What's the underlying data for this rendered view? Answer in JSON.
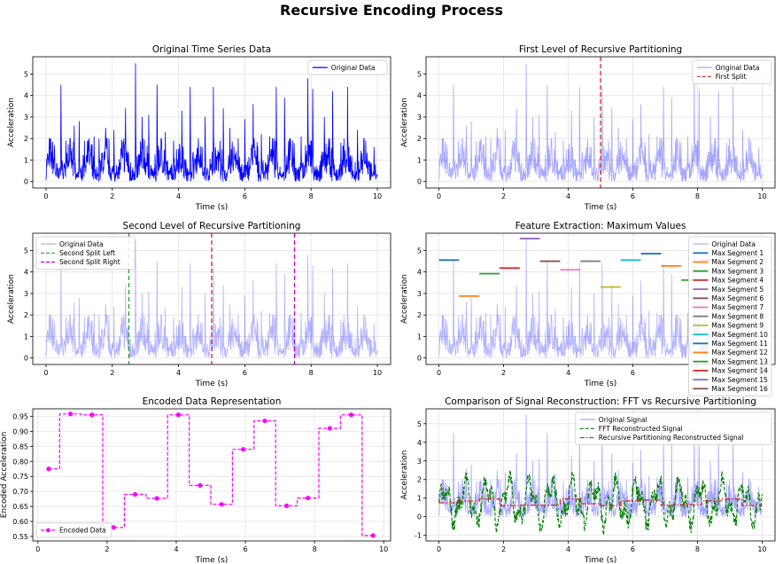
{
  "suptitle": "Recursive Encoding Process",
  "chart_data": [
    {
      "type": "line",
      "title": "Original Time Series Data",
      "xlabel": "Time (s)",
      "ylabel": "Acceleration",
      "xlim": [
        -0.4,
        10.4
      ],
      "ylim": [
        -0.3,
        5.8
      ],
      "xticks": [
        0,
        2,
        4,
        6,
        8,
        10
      ],
      "yticks": [
        0,
        1,
        2,
        3,
        4,
        5
      ],
      "grid": true,
      "legend": "top-right",
      "series": [
        {
          "name": "Original Data",
          "color": "#0000ff",
          "opacity": 1.0,
          "style": "signal",
          "peaks": [
            [
              0.25,
              1.7
            ],
            [
              0.45,
              2.2
            ],
            [
              0.6,
              1.9
            ],
            [
              0.85,
              2.6
            ],
            [
              1.25,
              1.9
            ],
            [
              1.45,
              2.1
            ],
            [
              1.6,
              2.0
            ],
            [
              1.8,
              2.5
            ],
            [
              2.05,
              2.4
            ],
            [
              2.4,
              3.4
            ],
            [
              2.7,
              5.5
            ],
            [
              2.9,
              3.0
            ],
            [
              3.1,
              3.1
            ],
            [
              3.35,
              2.4
            ],
            [
              3.6,
              2.3
            ],
            [
              3.85,
              1.9
            ],
            [
              4.1,
              3.3
            ],
            [
              4.35,
              4.4
            ],
            [
              4.6,
              2.0
            ],
            [
              4.8,
              3.0
            ],
            [
              5.05,
              4.4
            ],
            [
              5.25,
              1.9
            ],
            [
              5.55,
              2.5
            ],
            [
              5.8,
              2.0
            ],
            [
              6.0,
              2.9
            ],
            [
              6.25,
              3.6
            ],
            [
              6.5,
              2.2
            ],
            [
              6.75,
              2.1
            ],
            [
              6.95,
              4.4
            ],
            [
              7.2,
              2.6
            ],
            [
              7.45,
              1.9
            ],
            [
              7.7,
              2.1
            ],
            [
              7.9,
              4.8
            ],
            [
              8.05,
              4.3
            ],
            [
              8.4,
              3.0
            ],
            [
              8.65,
              2.0
            ],
            [
              8.9,
              1.8
            ],
            [
              9.1,
              2.9
            ],
            [
              9.4,
              2.4
            ],
            [
              9.65,
              1.9
            ],
            [
              9.9,
              1.6
            ],
            [
              0.45,
              4.5
            ],
            [
              1.0,
              2.8
            ],
            [
              3.35,
              4.5
            ],
            [
              5.35,
              3.4
            ],
            [
              7.2,
              3.9
            ],
            [
              8.65,
              4.2
            ],
            [
              9.1,
              4.4
            ]
          ]
        }
      ]
    },
    {
      "type": "line",
      "title": "First Level of Recursive Partitioning",
      "xlabel": "Time (s)",
      "ylabel": "Acceleration",
      "xlim": [
        -0.4,
        10.4
      ],
      "ylim": [
        -0.3,
        5.8
      ],
      "xticks": [
        0,
        2,
        4,
        6,
        8,
        10
      ],
      "yticks": [
        0,
        1,
        2,
        3,
        4,
        5
      ],
      "grid": true,
      "legend": "top-right",
      "series": [
        {
          "name": "Original Data",
          "color": "#0000ff",
          "opacity": 0.35,
          "style": "signal",
          "same_as": 0
        },
        {
          "name": "First Split",
          "color": "#d62728",
          "style": "vline",
          "x": 5.0
        }
      ]
    },
    {
      "type": "line",
      "title": "Second Level of Recursive Partitioning",
      "xlabel": "Time (s)",
      "ylabel": "Acceleration",
      "xlim": [
        -0.4,
        10.4
      ],
      "ylim": [
        -0.3,
        5.8
      ],
      "xticks": [
        0,
        2,
        4,
        6,
        8,
        10
      ],
      "yticks": [
        0,
        1,
        2,
        3,
        4,
        5
      ],
      "grid": true,
      "legend": "top-left",
      "series": [
        {
          "name": "Original Data",
          "color": "#0000ff",
          "opacity": 0.3,
          "style": "signal",
          "same_as": 0
        },
        {
          "name": "Second Split Left",
          "color": "#2ca02c",
          "style": "vline",
          "x": 2.5
        },
        {
          "name": "Second Split Right",
          "color": "#c000c0",
          "style": "vline",
          "x": 7.5
        },
        {
          "name": "",
          "color": "#d62728",
          "style": "vline",
          "x": 5.0
        }
      ]
    },
    {
      "type": "line",
      "title": "Feature Extraction: Maximum Values",
      "xlabel": "Time (s)",
      "ylabel": "Acceleration",
      "xlim": [
        -0.4,
        10.4
      ],
      "ylim": [
        -0.3,
        5.8
      ],
      "xticks": [
        0,
        2,
        4,
        6,
        8,
        10
      ],
      "yticks": [
        0,
        1,
        2,
        3,
        4,
        5
      ],
      "grid": true,
      "legend": "top-right",
      "series": [
        {
          "name": "Original Data",
          "color": "#0000ff",
          "opacity": 0.3,
          "style": "signal",
          "same_as": 0
        },
        {
          "name": "Max Segment 1",
          "color": "#1f77b4",
          "style": "hseg",
          "x": [
            0,
            0.625
          ],
          "y": 4.55
        },
        {
          "name": "Max Segment 2",
          "color": "#ff7f0e",
          "style": "hseg",
          "x": [
            0.625,
            1.25
          ],
          "y": 2.88
        },
        {
          "name": "Max Segment 3",
          "color": "#2ca02c",
          "style": "hseg",
          "x": [
            1.25,
            1.875
          ],
          "y": 3.92
        },
        {
          "name": "Max Segment 4",
          "color": "#d62728",
          "style": "hseg",
          "x": [
            1.875,
            2.5
          ],
          "y": 4.18
        },
        {
          "name": "Max Segment 5",
          "color": "#9467bd",
          "style": "hseg",
          "x": [
            2.5,
            3.125
          ],
          "y": 5.55
        },
        {
          "name": "Max Segment 6",
          "color": "#8c564b",
          "style": "hseg",
          "x": [
            3.125,
            3.75
          ],
          "y": 4.5
        },
        {
          "name": "Max Segment 7",
          "color": "#e377c2",
          "style": "hseg",
          "x": [
            3.75,
            4.375
          ],
          "y": 4.1
        },
        {
          "name": "Max Segment 8",
          "color": "#7f7f7f",
          "style": "hseg",
          "x": [
            4.375,
            5.0
          ],
          "y": 4.5
        },
        {
          "name": "Max Segment 9",
          "color": "#bcbd22",
          "style": "hseg",
          "x": [
            5.0,
            5.625
          ],
          "y": 3.3
        },
        {
          "name": "Max Segment 10",
          "color": "#17becf",
          "style": "hseg",
          "x": [
            5.625,
            6.25
          ],
          "y": 4.55
        },
        {
          "name": "Max Segment 11",
          "color": "#1f77b4",
          "style": "hseg",
          "x": [
            6.25,
            6.875
          ],
          "y": 4.85
        },
        {
          "name": "Max Segment 12",
          "color": "#ff7f0e",
          "style": "hseg",
          "x": [
            6.875,
            7.5
          ],
          "y": 4.28
        },
        {
          "name": "Max Segment 13",
          "color": "#2ca02c",
          "style": "hseg",
          "x": [
            7.5,
            8.125
          ],
          "y": 3.62
        },
        {
          "name": "Max Segment 14",
          "color": "#d62728",
          "style": "hseg",
          "x": [
            8.125,
            8.75
          ],
          "y": 4.55
        },
        {
          "name": "Max Segment 15",
          "color": "#9467bd",
          "style": "hseg",
          "x": [
            8.75,
            9.375
          ],
          "y": 4.78
        },
        {
          "name": "Max Segment 16",
          "color": "#8c564b",
          "style": "hseg",
          "x": [
            9.375,
            10.0
          ],
          "y": 4.7
        }
      ]
    },
    {
      "type": "line",
      "title": "Encoded Data Representation",
      "xlabel": "Time (s)",
      "ylabel": "Encoded Acceleration",
      "xlim": [
        -0.15,
        10.2
      ],
      "ylim": [
        0.535,
        0.975
      ],
      "xticks": [
        0,
        2,
        4,
        6,
        8,
        10
      ],
      "yticks": [
        0.55,
        0.6,
        0.65,
        0.7,
        0.75,
        0.8,
        0.85,
        0.9,
        0.95
      ],
      "ytick_labels": [
        "0.55",
        "0.60",
        "0.65",
        "0.70",
        "0.75",
        "0.80",
        "0.85",
        "0.90",
        "0.95"
      ],
      "grid": true,
      "legend": "bottom-left",
      "series": [
        {
          "name": "Encoded Data",
          "color": "#ff00ff",
          "style": "step",
          "x": [
            0.31,
            0.94,
            1.56,
            2.19,
            2.81,
            3.44,
            4.06,
            4.69,
            5.31,
            5.94,
            6.56,
            7.19,
            7.81,
            8.44,
            9.06,
            9.69
          ],
          "y": [
            0.775,
            0.958,
            0.955,
            0.58,
            0.69,
            0.677,
            0.955,
            0.72,
            0.657,
            0.84,
            0.935,
            0.652,
            0.678,
            0.91,
            0.955,
            0.553
          ]
        }
      ]
    },
    {
      "type": "line",
      "title": "Comparison of Signal Reconstruction: FFT vs Recursive Partitioning",
      "xlabel": "Time (s)",
      "ylabel": "Acceleration",
      "xlim": [
        -0.4,
        10.4
      ],
      "ylim": [
        -1.3,
        5.8
      ],
      "xticks": [
        0,
        2,
        4,
        6,
        8,
        10
      ],
      "yticks": [
        -1,
        0,
        1,
        2,
        3,
        4,
        5
      ],
      "grid": true,
      "legend": "top-right",
      "series": [
        {
          "name": "Original Signal",
          "color": "#0000ff",
          "opacity": 0.35,
          "style": "signal",
          "same_as": 0
        },
        {
          "name": "FFT Reconstructed Signal",
          "color": "#008000",
          "style": "fft"
        },
        {
          "name": "Recursive Partitioning Reconstructed Signal",
          "color": "#d62728",
          "style": "rp",
          "x": [
            0.31,
            0.94,
            1.56,
            2.19,
            2.81,
            3.44,
            4.06,
            4.69,
            5.31,
            5.94,
            6.56,
            7.19,
            7.81,
            8.44,
            9.06,
            9.69
          ],
          "y": [
            0.75,
            0.85,
            0.95,
            0.6,
            0.62,
            0.62,
            0.95,
            0.7,
            0.6,
            0.85,
            0.9,
            0.62,
            0.65,
            0.85,
            0.95,
            0.6
          ]
        }
      ]
    }
  ]
}
